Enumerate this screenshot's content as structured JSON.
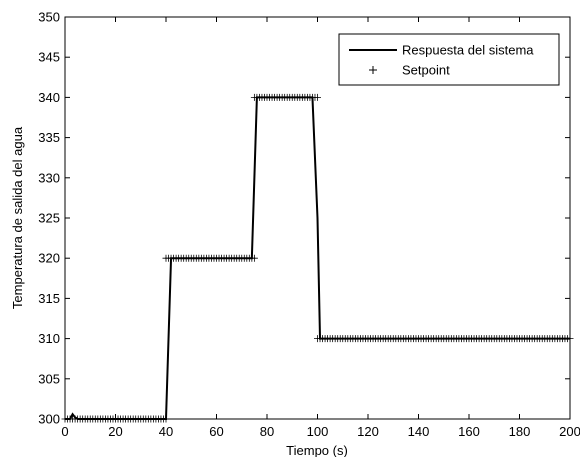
{
  "chart_data": {
    "type": "line",
    "title": "",
    "xlabel": "Tiempo (s)",
    "ylabel": "Temperatura de salida del agua",
    "xlim": [
      0,
      200
    ],
    "ylim": [
      300,
      350
    ],
    "xticks": [
      0,
      20,
      40,
      60,
      80,
      100,
      120,
      140,
      160,
      180,
      200
    ],
    "yticks": [
      300,
      305,
      310,
      315,
      320,
      325,
      330,
      335,
      340,
      345,
      350
    ],
    "grid": false,
    "legend_position": "top-right",
    "series": [
      {
        "name": "Respuesta del sistema",
        "style": "solid-line",
        "color": "#000000",
        "x": [
          0,
          2,
          3,
          4,
          5,
          40,
          41,
          42,
          74,
          75,
          76,
          98,
          100,
          101,
          102,
          200
        ],
        "y": [
          300,
          300,
          300.6,
          300.2,
          300,
          300,
          310,
          320,
          320,
          330,
          340,
          340,
          325,
          310,
          310,
          310
        ]
      },
      {
        "name": "Setpoint",
        "style": "plus-markers",
        "color": "#000000",
        "segments": [
          {
            "x_start": 0,
            "x_end": 40,
            "y": 300
          },
          {
            "x_start": 40,
            "x_end": 75,
            "y": 320
          },
          {
            "x_start": 75,
            "x_end": 100,
            "y": 340
          },
          {
            "x_start": 100,
            "x_end": 200,
            "y": 310
          }
        ],
        "marker_step": 1
      }
    ]
  }
}
